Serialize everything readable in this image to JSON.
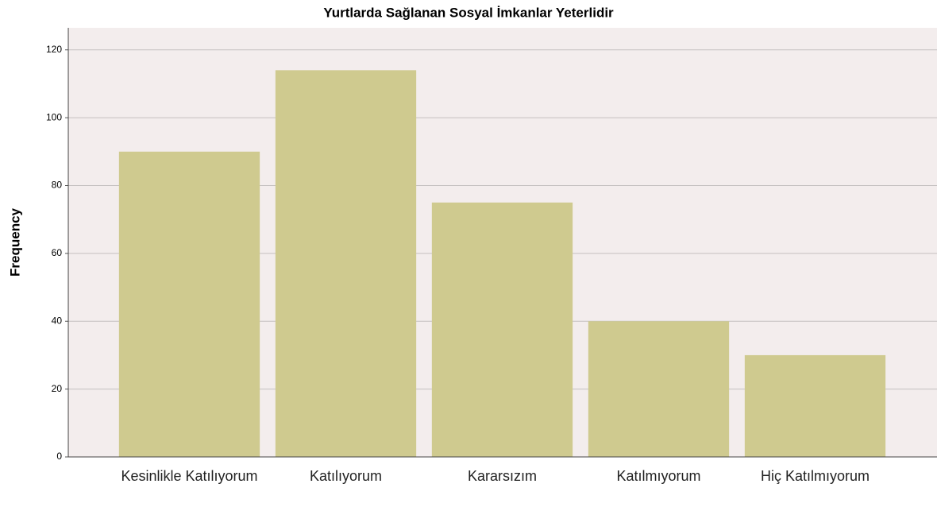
{
  "chart_data": {
    "type": "bar",
    "title": "Yurtlarda Sağlanan Sosyal İmkanlar Yeterlidir",
    "y_label": "Frequency",
    "categories": [
      "Kesinlikle Katılıyorum",
      "Katılıyorum",
      "Kararsızım",
      "Katılmıyorum",
      "Hiç Katılmıyorum"
    ],
    "values": [
      90,
      114,
      75,
      40,
      30
    ],
    "color": "#cfca8f",
    "ylim": [
      0,
      126.5
    ],
    "yticks": [
      0,
      20,
      40,
      60,
      80,
      100,
      120
    ],
    "grid": true
  }
}
